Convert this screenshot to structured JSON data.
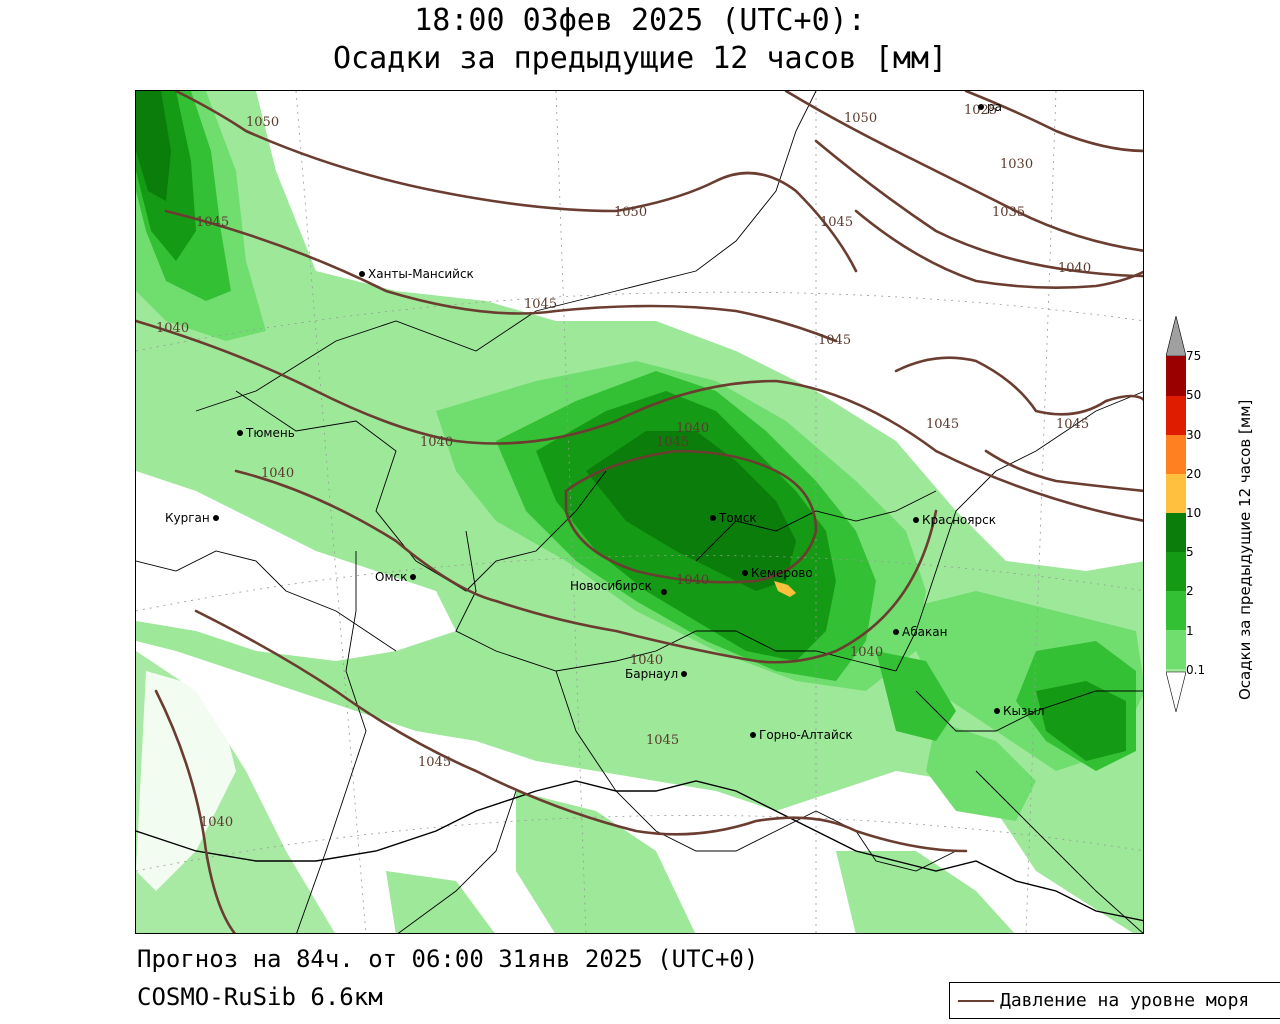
{
  "title": {
    "line1": "18:00 03фев 2025 (UTC+0):",
    "line2": "Осадки за предыдущие 12 часов [мм]"
  },
  "colors": {
    "precip_0_1": "#9ee89a",
    "precip_1": "#6fde6f",
    "precip_2": "#34c034",
    "precip_5": "#159a15",
    "precip_10": "#0a7d0a",
    "precip_20": "#ffc040",
    "precip_30": "#ff8020",
    "precip_50": "#e01c00",
    "precip_75": "#9a0000",
    "over_75": "#a0a0a0",
    "isobar": "#6b3d30",
    "border": "#000000"
  },
  "cities": [
    {
      "name": "Ханты-Мансийск"
    },
    {
      "name": "Тюмень"
    },
    {
      "name": "Курган"
    },
    {
      "name": "Омск"
    },
    {
      "name": "Новосибирск"
    },
    {
      "name": "Томск"
    },
    {
      "name": "Кемерово"
    },
    {
      "name": "Красноярск"
    },
    {
      "name": "Абакан"
    },
    {
      "name": "Барнаул"
    },
    {
      "name": "Горно-Алтайск"
    },
    {
      "name": "Кызыл"
    },
    {
      "name": "ра"
    }
  ],
  "isobar_labels": [
    "1050",
    "1045",
    "1040",
    "1040",
    "1050",
    "1045",
    "1040",
    "1045",
    "1040",
    "1025",
    "1030",
    "1035",
    "1040",
    "1045",
    "1045",
    "1045",
    "1045",
    "1050",
    "1040",
    "1040",
    "1040",
    "1045",
    "1045",
    "1040"
  ],
  "legend": {
    "ticks": [
      "75",
      "50",
      "30",
      "20",
      "10",
      "5",
      "2",
      "1",
      "0.1"
    ],
    "label": "Осадки за предыдущие 12 часов [мм]"
  },
  "footer": {
    "forecast": "Прогноз на 84ч. от 06:00 31янв 2025 (UTC+0)",
    "model": "COSMO-RuSib 6.6км",
    "pressure_legend": "Давление на уровне моря"
  }
}
